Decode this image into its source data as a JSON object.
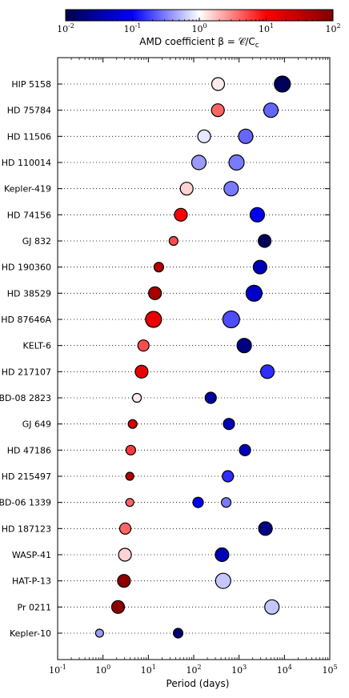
{
  "chart_data": {
    "type": "scatter",
    "xlabel": "Period (days)",
    "x_scale": "log",
    "xlim": [
      0.1,
      100000
    ],
    "x_ticks": [
      "10^-1",
      "10^0",
      "10^1",
      "10^2",
      "10^3",
      "10^4",
      "10^5"
    ],
    "grid": "horizontal dotted",
    "colorbar": {
      "label": "AMD coefficient β = 𝒞/C",
      "label_sub": "c",
      "scale": "log",
      "range": [
        0.01,
        100
      ],
      "ticks": [
        "10^-2",
        "10^-1",
        "10^0",
        "10^1",
        "10^2"
      ],
      "colormap": "seismic"
    },
    "systems": [
      {
        "name": "HIP 5158",
        "planets": [
          {
            "period": 345,
            "beta": 1.2,
            "r": 8
          },
          {
            "period": 9000,
            "beta": 0.012,
            "r": 10
          }
        ]
      },
      {
        "name": "HD 75784",
        "planets": [
          {
            "period": 341,
            "beta": 4.0,
            "r": 8
          },
          {
            "period": 5040,
            "beta": 0.25,
            "r": 9
          }
        ]
      },
      {
        "name": "HD 11506",
        "planets": [
          {
            "period": 170,
            "beta": 0.8,
            "r": 8
          },
          {
            "period": 1400,
            "beta": 0.25,
            "r": 9
          }
        ]
      },
      {
        "name": "HD 110014",
        "planets": [
          {
            "period": 130,
            "beta": 0.4,
            "r": 9
          },
          {
            "period": 880,
            "beta": 0.3,
            "r": 9.5
          }
        ]
      },
      {
        "name": "Kepler-419",
        "planets": [
          {
            "period": 70,
            "beta": 1.5,
            "r": 8
          },
          {
            "period": 670,
            "beta": 0.3,
            "r": 9
          }
        ]
      },
      {
        "name": "HD 74156",
        "planets": [
          {
            "period": 52,
            "beta": 10,
            "r": 8
          },
          {
            "period": 2520,
            "beta": 0.08,
            "r": 9
          }
        ]
      },
      {
        "name": "GJ 832",
        "planets": [
          {
            "period": 36,
            "beta": 5,
            "r": 5.5
          },
          {
            "period": 3660,
            "beta": 0.012,
            "r": 8
          }
        ]
      },
      {
        "name": "HD 190360",
        "planets": [
          {
            "period": 17,
            "beta": 40,
            "r": 6
          },
          {
            "period": 2900,
            "beta": 0.04,
            "r": 8.5
          }
        ]
      },
      {
        "name": "HD 38529",
        "planets": [
          {
            "period": 14,
            "beta": 50,
            "r": 8
          },
          {
            "period": 2140,
            "beta": 0.05,
            "r": 10
          }
        ]
      },
      {
        "name": "HD 87646A",
        "planets": [
          {
            "period": 13,
            "beta": 15,
            "r": 10
          },
          {
            "period": 670,
            "beta": 0.2,
            "r": 10.5
          }
        ]
      },
      {
        "name": "KELT-6",
        "planets": [
          {
            "period": 7.8,
            "beta": 5,
            "r": 7
          },
          {
            "period": 1300,
            "beta": 0.02,
            "r": 9
          }
        ]
      },
      {
        "name": "HD 217107",
        "planets": [
          {
            "period": 7.1,
            "beta": 15,
            "r": 8
          },
          {
            "period": 4210,
            "beta": 0.15,
            "r": 8.5
          }
        ]
      },
      {
        "name": "BD-08 2823",
        "planets": [
          {
            "period": 5.6,
            "beta": 1.2,
            "r": 5.5
          },
          {
            "period": 237,
            "beta": 0.03,
            "r": 7
          }
        ]
      },
      {
        "name": "GJ 649",
        "planets": [
          {
            "period": 4.5,
            "beta": 20,
            "r": 5.5
          },
          {
            "period": 598,
            "beta": 0.04,
            "r": 7
          }
        ]
      },
      {
        "name": "HD 47186",
        "planets": [
          {
            "period": 4.1,
            "beta": 6,
            "r": 6
          },
          {
            "period": 1350,
            "beta": 0.04,
            "r": 7
          }
        ]
      },
      {
        "name": "HD 215497",
        "planets": [
          {
            "period": 3.9,
            "beta": 40,
            "r": 5
          },
          {
            "period": 567,
            "beta": 0.15,
            "r": 7
          }
        ]
      },
      {
        "name": "BD-06 1339",
        "planets": [
          {
            "period": 3.9,
            "beta": 4,
            "r": 5
          },
          {
            "period": 125,
            "beta": 0.08,
            "r": 6.5
          },
          {
            "period": 520,
            "beta": 0.3,
            "r": 6
          }
        ]
      },
      {
        "name": "HD 187123",
        "planets": [
          {
            "period": 3.1,
            "beta": 4,
            "r": 7
          },
          {
            "period": 3810,
            "beta": 0.02,
            "r": 8.5
          }
        ]
      },
      {
        "name": "WASP-41",
        "planets": [
          {
            "period": 3.05,
            "beta": 1.5,
            "r": 8
          },
          {
            "period": 421,
            "beta": 0.04,
            "r": 8.5
          }
        ]
      },
      {
        "name": "HAT-P-13",
        "planets": [
          {
            "period": 2.9,
            "beta": 80,
            "r": 8
          },
          {
            "period": 446,
            "beta": 0.6,
            "r": 9.5
          }
        ]
      },
      {
        "name": "Pr 0211",
        "planets": [
          {
            "period": 2.15,
            "beta": 80,
            "r": 8
          },
          {
            "period": 5300,
            "beta": 0.6,
            "r": 9
          }
        ]
      },
      {
        "name": "Kepler-10",
        "planets": [
          {
            "period": 0.84,
            "beta": 0.4,
            "r": 5
          },
          {
            "period": 45.3,
            "beta": 0.015,
            "r": 6
          }
        ]
      }
    ]
  }
}
